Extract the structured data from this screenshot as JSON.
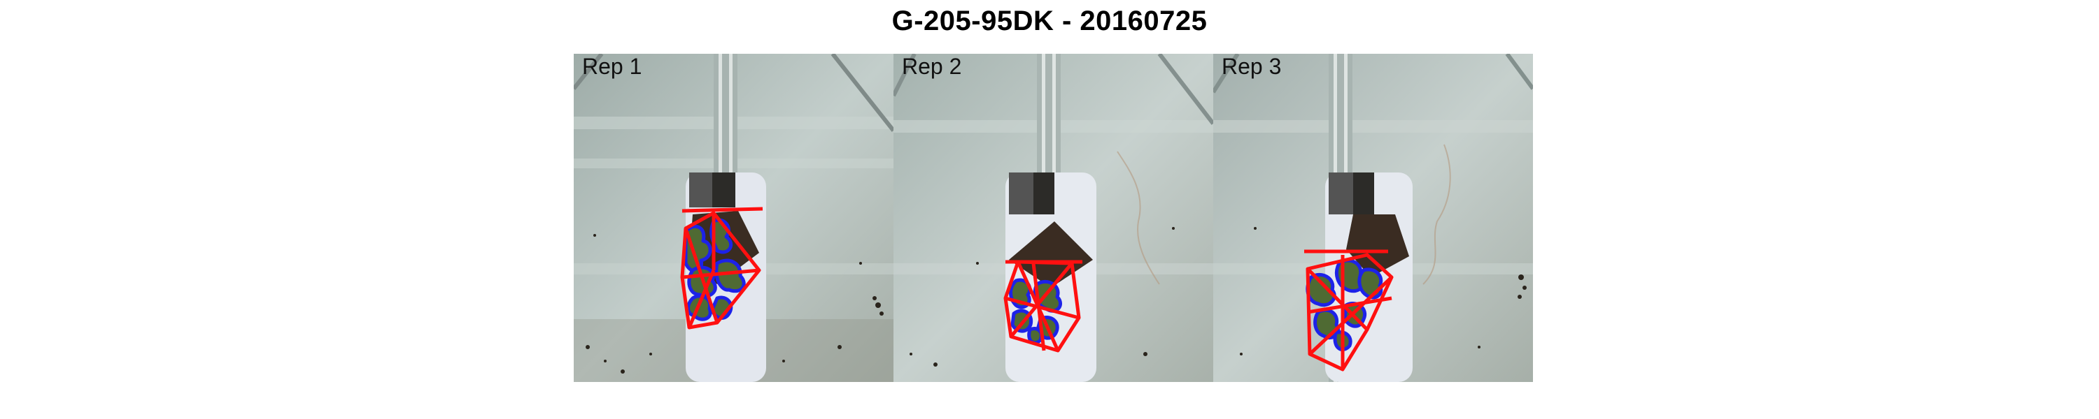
{
  "figure": {
    "title": "G-205-95DK - 20160725"
  },
  "panels": [
    {
      "label": "Rep 1"
    },
    {
      "label": "Rep 2"
    },
    {
      "label": "Rep 3"
    }
  ],
  "colors": {
    "background_tray": "#b7c4c1",
    "plant_leaf": "#4f6a33",
    "leaf_contour": "#1d22e8",
    "convex_hull": "#ff1010",
    "pot_black": "#2c2b28",
    "soil": "#3a2c22"
  }
}
